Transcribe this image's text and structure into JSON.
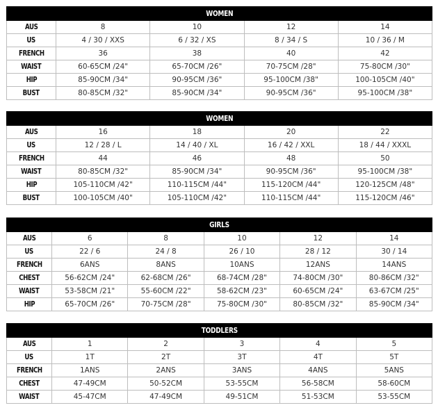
{
  "tables": [
    {
      "title": "WOMEN",
      "rows": [
        {
          "label": "AUS",
          "values": [
            "8",
            "10",
            "12",
            "14"
          ]
        },
        {
          "label": "US",
          "values": [
            "4 / 30 / XXS",
            "6 / 32 / XS",
            "8 / 34 / S",
            "10 / 36 / M"
          ]
        },
        {
          "label": "FRENCH",
          "values": [
            "36",
            "38",
            "40",
            "42"
          ]
        },
        {
          "label": "WAIST",
          "values": [
            "60-65CM /24\"",
            "65-70CM /26\"",
            "70-75CM /28\"",
            "75-80CM /30\""
          ]
        },
        {
          "label": "HIP",
          "values": [
            "85-90CM /34\"",
            "90-95CM /36\"",
            "95-100CM /38\"",
            "100-105CM /40\""
          ]
        },
        {
          "label": "BUST",
          "values": [
            "80-85CM /32\"",
            "85-90CM /34\"",
            "90-95CM /36\"",
            "95-100CM /38\""
          ]
        }
      ]
    },
    {
      "title": "WOMEN",
      "rows": [
        {
          "label": "AUS",
          "values": [
            "16",
            "18",
            "20",
            "22"
          ]
        },
        {
          "label": "US",
          "values": [
            "12 / 28 / L",
            "14 / 40 / XL",
            "16 / 42 / XXL",
            "18 / 44 / XXXL"
          ]
        },
        {
          "label": "FRENCH",
          "values": [
            "44",
            "46",
            "48",
            "50"
          ]
        },
        {
          "label": "WAIST",
          "values": [
            "80-85CM /32\"",
            "85-90CM /34\"",
            "90-95CM /36\"",
            "95-100CM /38\""
          ]
        },
        {
          "label": "HIP",
          "values": [
            "105-110CM /42\"",
            "110-115CM /44\"",
            "115-120CM /44\"",
            "120-125CM /48\""
          ]
        },
        {
          "label": "BUST",
          "values": [
            "100-105CM /40\"",
            "105-110CM /42\"",
            "110-115CM /44\"",
            "115-120CM /46\""
          ]
        }
      ]
    },
    {
      "title": "GIRLS",
      "rows": [
        {
          "label": "AUS",
          "values": [
            "6",
            "8",
            "10",
            "12",
            "14"
          ]
        },
        {
          "label": "US",
          "values": [
            "22 / 6",
            "24 / 8",
            "26 / 10",
            "28 / 12",
            "30 / 14"
          ]
        },
        {
          "label": "FRENCH",
          "values": [
            "6ANS",
            "8ANS",
            "10ANS",
            "12ANS",
            "14ANS"
          ]
        },
        {
          "label": "CHEST",
          "values": [
            "56-62CM /24\"",
            "62-68CM /26\"",
            "68-74CM /28\"",
            "74-80CM /30\"",
            "80-86CM /32\""
          ]
        },
        {
          "label": "WAIST",
          "values": [
            "53-58CM /21\"",
            "55-60CM /22\"",
            "58-62CM /23\"",
            "60-65CM /24\"",
            "63-67CM /25\""
          ]
        },
        {
          "label": "HIP",
          "values": [
            "65-70CM /26\"",
            "70-75CM /28\"",
            "75-80CM /30\"",
            "80-85CM /32\"",
            "85-90CM /34\""
          ]
        }
      ]
    },
    {
      "title": "TODDLERS",
      "rows": [
        {
          "label": "AUS",
          "values": [
            "1",
            "2",
            "3",
            "4",
            "5"
          ]
        },
        {
          "label": "US",
          "values": [
            "1T",
            "2T",
            "3T",
            "4T",
            "5T"
          ]
        },
        {
          "label": "FRENCH",
          "values": [
            "1ANS",
            "2ANS",
            "3ANS",
            "4ANS",
            "5ANS"
          ]
        },
        {
          "label": "CHEST",
          "values": [
            "47-49CM",
            "50-52CM",
            "53-55CM",
            "56-58CM",
            "58-60CM"
          ]
        },
        {
          "label": "WAIST",
          "values": [
            "45-47CM",
            "47-49CM",
            "49-51CM",
            "51-53CM",
            "53-55CM"
          ]
        }
      ]
    }
  ]
}
